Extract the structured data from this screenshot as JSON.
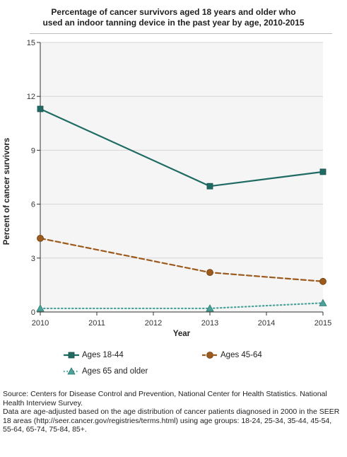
{
  "chart_data": {
    "type": "line",
    "title": "Percentage of cancer survivors aged 18 years and older who used an indoor tanning device in the past year by age, 2010-2015",
    "title_lines": [
      "Percentage of cancer survivors aged 18 years and older who",
      "used an indoor tanning device in the past year by age, 2010-2015"
    ],
    "xlabel": "Year",
    "ylabel": "Percent of cancer survivors",
    "xlim": [
      2010,
      2015
    ],
    "ylim": [
      0,
      15
    ],
    "x_ticks": [
      "2010",
      "2011",
      "2012",
      "2013",
      "2014",
      "2015"
    ],
    "y_ticks": [
      "0",
      "3",
      "6",
      "9",
      "12",
      "15"
    ],
    "grid": true,
    "legend_position": "bottom",
    "series": [
      {
        "name": "Ages 18-44",
        "color": "#1f6b63",
        "style": "solid",
        "marker": "square",
        "x": [
          2010,
          2013,
          2015
        ],
        "y": [
          11.3,
          7.0,
          7.8
        ]
      },
      {
        "name": "Ages 45-64",
        "color": "#9c5a1c",
        "style": "dashed",
        "marker": "circle",
        "x": [
          2010,
          2013,
          2015
        ],
        "y": [
          4.1,
          2.2,
          1.7
        ]
      },
      {
        "name": "Ages 65 and older",
        "color": "#4aa39a",
        "style": "dotted",
        "marker": "triangle",
        "x": [
          2010,
          2013,
          2015
        ],
        "y": [
          0.2,
          0.2,
          0.5
        ]
      }
    ]
  },
  "source": {
    "line1": "Source: Centers for Disease Control and Prevention, National Center for Health Statistics. National Health Interview Survey.",
    "line2": "Data are age-adjusted based on the age distribution of cancer patients diagnosed in 2000 in the SEER 18 areas (http://seer.cancer.gov/registries/terms.html) using age groups: 18-24, 25-34, 35-44, 45-54, 55-64, 65-74, 75-84, 85+."
  },
  "colors": {
    "plot_background": "#f5f5f5",
    "gridline": "#d6d6d6",
    "axis": "#333333"
  }
}
